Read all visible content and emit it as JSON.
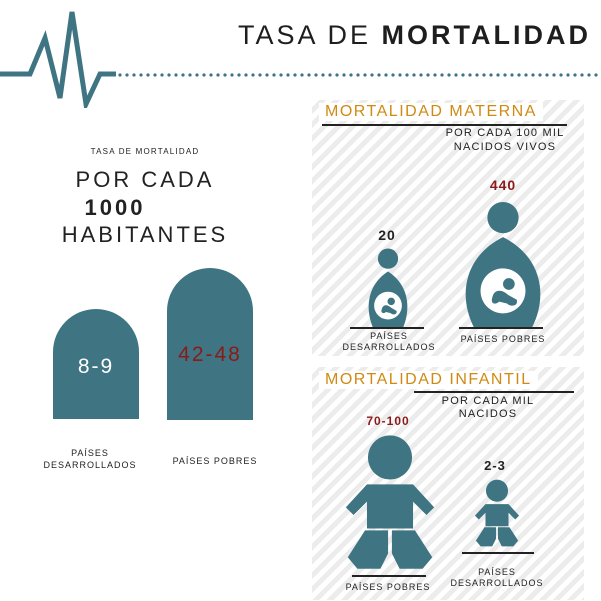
{
  "header": {
    "title_part1": "TASA DE ",
    "title_part2": "MORTALIDAD"
  },
  "colors": {
    "teal": "#3f7582",
    "accent_gold": "#d08a12",
    "accent_red": "#8b1a1a",
    "stripes": "#ececec"
  },
  "general": {
    "label": "TASA DE MORTALIDAD",
    "line1": "POR CADA",
    "line2": "1000",
    "line3": "HABITANTES",
    "developed": {
      "value": "8-9",
      "label_line1": "PAÍSES",
      "label_line2": "DESARROLLADOS"
    },
    "poor": {
      "value": "42-48",
      "label": "PAÍSES POBRES"
    }
  },
  "maternal": {
    "title": "MORTALIDAD MATERNA",
    "sub_line1": "POR CADA 100 MIL",
    "sub_line2": "NACIDOS VIVOS",
    "developed": {
      "value": "20",
      "label_line1": "PAÍSES",
      "label_line2": "DESARROLLADOS"
    },
    "poor": {
      "value": "440",
      "label": "PAÍSES POBRES"
    }
  },
  "infant": {
    "title": "MORTALIDAD INFANTIL",
    "sub_line1": "POR CADA MIL",
    "sub_line2": "NACIDOS",
    "poor": {
      "value": "70-100",
      "label": "PAÍSES POBRES"
    },
    "developed": {
      "value": "2-3",
      "label_line1": "PAÍSES",
      "label_line2": "DESARROLLADOS"
    }
  }
}
